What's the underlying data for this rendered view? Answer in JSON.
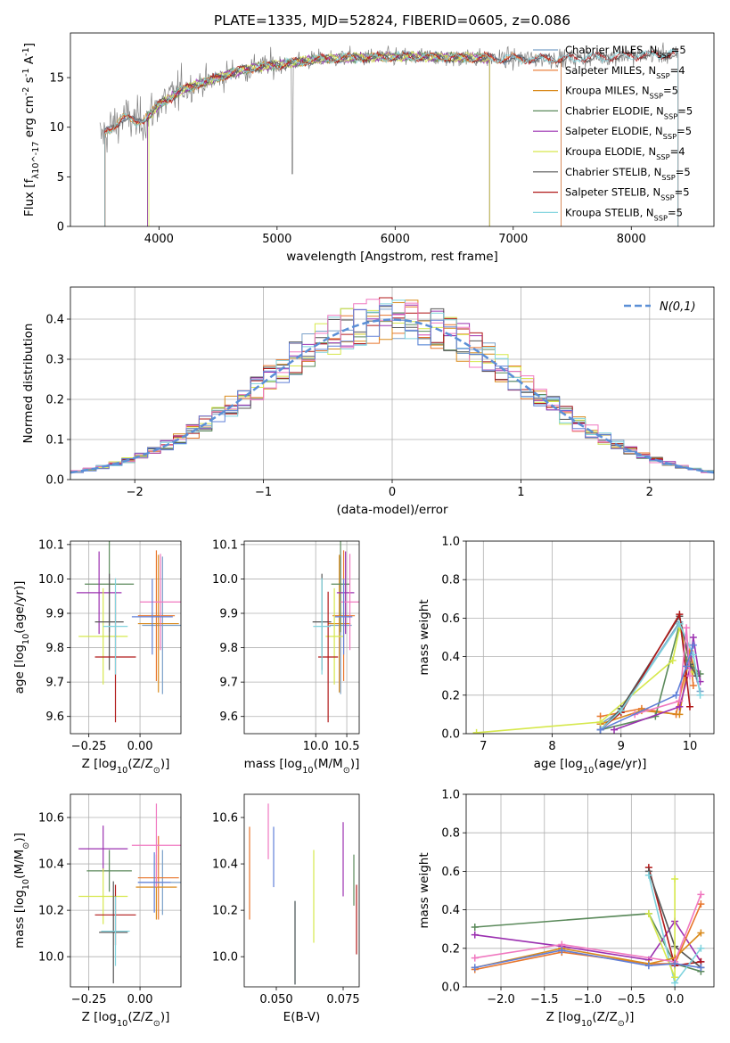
{
  "figure_title": "PLATE=1335, MJD=52824, FIBERID=0605, z=0.086",
  "colors": {
    "chabrier_miles": "#7aa0c8",
    "salpeter_miles": "#e8762c",
    "kroupa_miles": "#d98a1c",
    "chabrier_elodie": "#5b8a5b",
    "salpeter_elodie": "#9b30b0",
    "kroupa_elodie": "#d6e84c",
    "chabrier_stelib": "#555555",
    "salpeter_stelib": "#b01818",
    "kroupa_stelib": "#7fd3de",
    "extra_pink": "#f078c0",
    "extra_blue": "#6080d8",
    "observed_spectrum": "#808080",
    "normal_curve": "#5b8fd6"
  },
  "chart_data": [
    {
      "id": "spectrum",
      "type": "line",
      "title": "PLATE=1335, MJD=52824, FIBERID=0605, z=0.086",
      "xlabel": "wavelength [Angstrom, rest frame]",
      "ylabel": "Flux [f_λ10^-17 erg cm^-2 s^-1 A^-1]",
      "xlim": [
        3250,
        8700
      ],
      "ylim": [
        0,
        19.5
      ],
      "xticks": [
        4000,
        5000,
        6000,
        7000,
        8000
      ],
      "yticks": [
        0,
        5,
        10,
        15
      ],
      "grid": false,
      "legend": "top-right",
      "legend_entries": [
        "Chabrier MILES, N_SSP=5",
        "Salpeter MILES, N_SSP=4",
        "Kroupa MILES, N_SSP=5",
        "Chabrier ELODIE, N_SSP=5",
        "Salpeter ELODIE, N_SSP=5",
        "Kroupa ELODIE, N_SSP=4",
        "Chabrier STELIB, N_SSP=5",
        "Salpeter STELIB, N_SSP=5",
        "Kroupa STELIB, N_SSP=5"
      ],
      "continuum": {
        "x": [
          3500,
          3600,
          3700,
          3800,
          3900,
          4000,
          4100,
          4200,
          4300,
          4500,
          4700,
          5000,
          5300,
          5600,
          6000,
          6300,
          6600,
          7000,
          7400,
          8000,
          8400
        ],
        "y": [
          9.0,
          10.0,
          11.0,
          10.5,
          11.0,
          12.3,
          13.0,
          13.8,
          14.2,
          15.0,
          15.8,
          16.3,
          16.8,
          17.0,
          17.1,
          17.1,
          17.0,
          16.9,
          16.9,
          17.2,
          17.4
        ]
      },
      "model_coverage": [
        {
          "series": "Chabrier MILES",
          "x": [
            3540,
            7410
          ]
        },
        {
          "series": "Salpeter MILES",
          "x": [
            3540,
            7410
          ]
        },
        {
          "series": "Kroupa MILES",
          "x": [
            3540,
            6800
          ]
        },
        {
          "series": "Chabrier ELODIE",
          "x": [
            3900,
            6800
          ]
        },
        {
          "series": "Salpeter ELODIE",
          "x": [
            3900,
            6800
          ]
        },
        {
          "series": "Kroupa ELODIE",
          "x": [
            3910,
            6800
          ]
        },
        {
          "series": "Chabrier STELIB",
          "x": [
            3540,
            8400
          ]
        },
        {
          "series": "Salpeter STELIB",
          "x": [
            3540,
            8400
          ]
        },
        {
          "series": "Kroupa STELIB",
          "x": [
            3540,
            8400
          ]
        }
      ]
    },
    {
      "id": "residuals",
      "type": "histogram",
      "xlabel": "(data-model)/error",
      "ylabel": "Normed distribution",
      "xlim": [
        -2.5,
        2.5
      ],
      "ylim": [
        0,
        0.48
      ],
      "xticks": [
        -2,
        -1,
        0,
        1,
        2
      ],
      "yticks": [
        0.0,
        0.1,
        0.2,
        0.3,
        0.4
      ],
      "grid": true,
      "legend": "top-right",
      "legend_entries": [
        "N(0,1)"
      ],
      "normal_curve": {
        "mean": 0,
        "sigma": 1
      }
    },
    {
      "id": "age_vs_Z",
      "type": "scatter",
      "xlabel": "Z [log10(Z/Z_sun)]",
      "ylabel": "age [log10(age/yr)]",
      "xlim": [
        -0.34,
        0.2
      ],
      "ylim": [
        9.55,
        10.11
      ],
      "xticks": [
        -0.25,
        0.0
      ],
      "yticks": [
        9.6,
        9.7,
        9.8,
        9.9,
        10.0,
        10.1
      ],
      "grid": true,
      "points": [
        {
          "series": "Chabrier MILES",
          "x": 0.11,
          "y": 9.865,
          "xerr": 0.1,
          "yerr": 0.2
        },
        {
          "series": "Salpeter MILES",
          "x": 0.08,
          "y": 9.893,
          "xerr": 0.09,
          "yerr": 0.19
        },
        {
          "series": "Kroupa MILES",
          "x": 0.09,
          "y": 9.87,
          "xerr": 0.1,
          "yerr": 0.2
        },
        {
          "series": "Chabrier ELODIE",
          "x": -0.15,
          "y": 9.985,
          "xerr": 0.12,
          "yerr": 0.14
        },
        {
          "series": "Salpeter ELODIE",
          "x": -0.2,
          "y": 9.96,
          "xerr": 0.11,
          "yerr": 0.12
        },
        {
          "series": "Kroupa ELODIE",
          "x": -0.18,
          "y": 9.833,
          "xerr": 0.12,
          "yerr": 0.14
        },
        {
          "series": "Chabrier STELIB",
          "x": -0.15,
          "y": 9.875,
          "xerr": 0.07,
          "yerr": 0.14
        },
        {
          "series": "Salpeter STELIB",
          "x": -0.12,
          "y": 9.773,
          "xerr": 0.1,
          "yerr": 0.19
        },
        {
          "series": "Kroupa STELIB",
          "x": -0.12,
          "y": 9.862,
          "xerr": 0.06,
          "yerr": 0.14
        },
        {
          "series": "extra pink",
          "x": 0.1,
          "y": 9.933,
          "xerr": 0.1,
          "yerr": 0.14
        },
        {
          "series": "extra blue",
          "x": 0.06,
          "y": 9.89,
          "xerr": 0.1,
          "yerr": 0.11
        }
      ]
    },
    {
      "id": "age_vs_mass",
      "type": "scatter",
      "xlabel": "mass [log10(M/M_sun)]",
      "ylabel": "",
      "xlim": [
        8.85,
        10.7
      ],
      "ylim": [
        9.55,
        10.11
      ],
      "xticks": [
        10.0,
        10.5
      ],
      "yticks": [
        9.6,
        9.7,
        9.8,
        9.9,
        10.0,
        10.1
      ],
      "grid": true,
      "points": [
        {
          "series": "Chabrier MILES",
          "x": 10.4,
          "y": 9.865,
          "xerr": 0.18,
          "yerr": 0.2
        },
        {
          "series": "Salpeter MILES",
          "x": 10.45,
          "y": 9.893,
          "xerr": 0.18,
          "yerr": 0.19
        },
        {
          "series": "Kroupa MILES",
          "x": 10.38,
          "y": 9.87,
          "xerr": 0.18,
          "yerr": 0.2
        },
        {
          "series": "Chabrier ELODIE",
          "x": 10.4,
          "y": 9.985,
          "xerr": 0.15,
          "yerr": 0.14
        },
        {
          "series": "Salpeter ELODIE",
          "x": 10.48,
          "y": 9.96,
          "xerr": 0.14,
          "yerr": 0.12
        },
        {
          "series": "Kroupa ELODIE",
          "x": 10.3,
          "y": 9.833,
          "xerr": 0.14,
          "yerr": 0.14
        },
        {
          "series": "Chabrier STELIB",
          "x": 10.1,
          "y": 9.875,
          "xerr": 0.15,
          "yerr": 0.14
        },
        {
          "series": "Salpeter STELIB",
          "x": 10.2,
          "y": 9.773,
          "xerr": 0.16,
          "yerr": 0.19
        },
        {
          "series": "Kroupa STELIB",
          "x": 10.1,
          "y": 9.862,
          "xerr": 0.14,
          "yerr": 0.14
        },
        {
          "series": "extra pink",
          "x": 10.55,
          "y": 9.933,
          "xerr": 0.15,
          "yerr": 0.14
        },
        {
          "series": "extra blue",
          "x": 10.45,
          "y": 9.89,
          "xerr": 0.14,
          "yerr": 0.11
        }
      ]
    },
    {
      "id": "weight_vs_age",
      "type": "line",
      "xlabel": "age [log10(age/yr)]",
      "ylabel": "mass weight",
      "xlim": [
        6.75,
        10.35
      ],
      "ylim": [
        0.0,
        1.0
      ],
      "xticks": [
        7,
        8,
        9,
        10
      ],
      "yticks": [
        0.0,
        0.2,
        0.4,
        0.6,
        0.8,
        1.0
      ],
      "grid": true,
      "series": [
        {
          "name": "Chabrier MILES",
          "x": [
            8.7,
            9.0,
            9.85,
            10.0,
            10.15
          ],
          "y": [
            0.05,
            0.12,
            0.58,
            0.4,
            0.22
          ]
        },
        {
          "name": "Salpeter MILES",
          "x": [
            8.7,
            9.3,
            9.8,
            10.0,
            10.05
          ],
          "y": [
            0.09,
            0.13,
            0.1,
            0.43,
            0.25
          ]
        },
        {
          "name": "Kroupa MILES",
          "x": [
            8.7,
            9.3,
            9.85,
            10.0,
            10.1
          ],
          "y": [
            0.05,
            0.12,
            0.1,
            0.42,
            0.3
          ]
        },
        {
          "name": "Chabrier ELODIE",
          "x": [
            8.7,
            9.5,
            9.85,
            9.95,
            10.15
          ],
          "y": [
            0.02,
            0.09,
            0.57,
            0.38,
            0.31
          ]
        },
        {
          "name": "Salpeter ELODIE",
          "x": [
            8.9,
            9.85,
            10.0,
            10.05,
            10.15
          ],
          "y": [
            0.02,
            0.14,
            0.34,
            0.5,
            0.27
          ]
        },
        {
          "name": "Kroupa ELODIE",
          "x": [
            6.9,
            8.7,
            9.75,
            9.85,
            10.05
          ],
          "y": [
            0.005,
            0.06,
            0.38,
            0.55,
            0.32
          ]
        },
        {
          "name": "Chabrier STELIB",
          "x": [
            8.7,
            9.0,
            9.85,
            10.0,
            10.1
          ],
          "y": [
            0.02,
            0.13,
            0.61,
            0.36,
            0.3
          ]
        },
        {
          "name": "Salpeter STELIB",
          "x": [
            8.7,
            9.0,
            9.85,
            9.95,
            10.0
          ],
          "y": [
            0.02,
            0.11,
            0.62,
            0.3,
            0.14
          ]
        },
        {
          "name": "Kroupa STELIB",
          "x": [
            8.7,
            9.0,
            9.85,
            10.05,
            10.15
          ],
          "y": [
            0.02,
            0.12,
            0.57,
            0.41,
            0.2
          ]
        },
        {
          "name": "extra pink",
          "x": [
            9.2,
            9.85,
            9.95,
            10.0
          ],
          "y": [
            0.1,
            0.17,
            0.55,
            0.3
          ]
        },
        {
          "name": "extra blue",
          "x": [
            8.7,
            9.8,
            9.95,
            10.05
          ],
          "y": [
            0.02,
            0.2,
            0.35,
            0.46
          ]
        }
      ]
    },
    {
      "id": "mass_vs_Z",
      "type": "scatter",
      "xlabel": "Z [log10(Z/Z_sun)]",
      "ylabel": "mass [log10(M/M_sun)]",
      "xlim": [
        -0.34,
        0.2
      ],
      "ylim": [
        9.87,
        10.7
      ],
      "xticks": [
        -0.25,
        0.0
      ],
      "yticks": [
        10.0,
        10.2,
        10.4,
        10.6
      ],
      "grid": true,
      "points": [
        {
          "series": "Chabrier MILES",
          "x": 0.11,
          "y": 10.32,
          "xerr": 0.12,
          "yerr": 0.14
        },
        {
          "series": "Salpeter MILES",
          "x": 0.09,
          "y": 10.34,
          "xerr": 0.1,
          "yerr": 0.18
        },
        {
          "series": "Kroupa MILES",
          "x": 0.08,
          "y": 10.3,
          "xerr": 0.1,
          "yerr": 0.14
        },
        {
          "series": "Chabrier ELODIE",
          "x": -0.15,
          "y": 10.37,
          "xerr": 0.11,
          "yerr": 0.09
        },
        {
          "series": "Salpeter ELODIE",
          "x": -0.18,
          "y": 10.465,
          "xerr": 0.12,
          "yerr": 0.1
        },
        {
          "series": "Kroupa ELODIE",
          "x": -0.18,
          "y": 10.26,
          "xerr": 0.12,
          "yerr": 0.12
        },
        {
          "series": "Chabrier STELIB",
          "x": -0.13,
          "y": 10.105,
          "xerr": 0.07,
          "yerr": 0.22
        },
        {
          "series": "Salpeter STELIB",
          "x": -0.12,
          "y": 10.18,
          "xerr": 0.1,
          "yerr": 0.13
        },
        {
          "series": "Kroupa STELIB",
          "x": -0.12,
          "y": 10.11,
          "xerr": 0.07,
          "yerr": 0.15
        },
        {
          "series": "extra pink",
          "x": 0.08,
          "y": 10.48,
          "xerr": 0.12,
          "yerr": 0.18
        },
        {
          "series": "extra blue",
          "x": 0.07,
          "y": 10.32,
          "xerr": 0.08,
          "yerr": 0.13
        }
      ]
    },
    {
      "id": "mass_vs_ebv",
      "type": "scatter",
      "xlabel": "E(B-V)",
      "ylabel": "",
      "xlim": [
        0.038,
        0.081
      ],
      "ylim": [
        9.87,
        10.7
      ],
      "xticks": [
        0.05,
        0.075
      ],
      "yticks": [
        10.0,
        10.2,
        10.4,
        10.6
      ],
      "grid": false,
      "points": [
        {
          "series": "Salpeter MILES",
          "x": 0.04,
          "y": 10.36,
          "yerr": 0.2
        },
        {
          "series": "extra pink",
          "x": 0.047,
          "y": 10.54,
          "yerr": 0.12
        },
        {
          "series": "extra blue",
          "x": 0.049,
          "y": 10.43,
          "yerr": 0.13
        },
        {
          "series": "Kroupa STELIB",
          "x": 0.057,
          "y": 10.06,
          "yerr": 0.18
        },
        {
          "series": "Chabrier STELIB",
          "x": 0.057,
          "y": 10.06,
          "yerr": 0.18
        },
        {
          "series": "Kroupa ELODIE",
          "x": 0.064,
          "y": 10.26,
          "yerr": 0.2
        },
        {
          "series": "Salpeter ELODIE",
          "x": 0.075,
          "y": 10.42,
          "yerr": 0.16
        },
        {
          "series": "Chabrier ELODIE",
          "x": 0.079,
          "y": 10.33,
          "yerr": 0.11
        },
        {
          "series": "Salpeter STELIB",
          "x": 0.08,
          "y": 10.16,
          "yerr": 0.15
        }
      ]
    },
    {
      "id": "weight_vs_Z",
      "type": "line",
      "xlabel": "Z [log10(Z/Z_sun)]",
      "ylabel": "mass weight",
      "xlim": [
        -2.4,
        0.45
      ],
      "ylim": [
        0.0,
        1.0
      ],
      "xticks": [
        -2.0,
        -1.5,
        -1.0,
        -0.5,
        0.0
      ],
      "yticks": [
        0.0,
        0.2,
        0.4,
        0.6,
        0.8,
        1.0
      ],
      "grid": true,
      "series": [
        {
          "name": "Chabrier ELODIE",
          "x": [
            -2.3,
            -0.3,
            0.0,
            0.3
          ],
          "y": [
            0.31,
            0.38,
            0.12,
            0.08
          ]
        },
        {
          "name": "Salpeter ELODIE",
          "x": [
            -2.3,
            -1.3,
            -0.3,
            0.0,
            0.3
          ],
          "y": [
            0.27,
            0.21,
            0.14,
            0.34,
            0.13
          ]
        },
        {
          "name": "Salpeter STELIB",
          "x": [
            -0.3,
            0.0,
            0.3
          ],
          "y": [
            0.62,
            0.11,
            0.13
          ]
        },
        {
          "name": "Chabrier STELIB",
          "x": [
            -0.3,
            0.0,
            0.3
          ],
          "y": [
            0.6,
            0.21,
            0.1
          ]
        },
        {
          "name": "Kroupa STELIB",
          "x": [
            -0.3,
            0.0,
            0.3
          ],
          "y": [
            0.58,
            0.02,
            0.2
          ]
        },
        {
          "name": "Kroupa ELODIE",
          "x": [
            -0.3,
            0.0,
            0.0
          ],
          "y": [
            0.38,
            0.05,
            0.56
          ]
        },
        {
          "name": "Salpeter MILES",
          "x": [
            -2.3,
            -1.3,
            -0.3,
            0.0,
            0.3
          ],
          "y": [
            0.09,
            0.18,
            0.12,
            0.12,
            0.43
          ]
        },
        {
          "name": "Kroupa MILES",
          "x": [
            -2.3,
            -1.3,
            -0.3,
            0.0,
            0.3
          ],
          "y": [
            0.1,
            0.2,
            0.12,
            0.15,
            0.28
          ]
        },
        {
          "name": "extra pink",
          "x": [
            -2.3,
            -1.3,
            0.0,
            0.3
          ],
          "y": [
            0.15,
            0.22,
            0.13,
            0.48
          ]
        },
        {
          "name": "extra blue",
          "x": [
            -2.3,
            -1.3,
            -0.3,
            0.0,
            0.3
          ],
          "y": [
            0.1,
            0.19,
            0.11,
            0.12,
            0.1
          ]
        }
      ]
    }
  ]
}
